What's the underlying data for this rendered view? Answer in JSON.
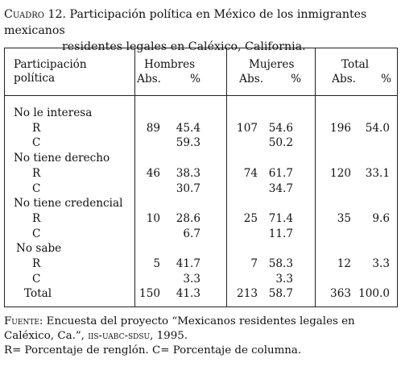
{
  "caption": {
    "label": "Cuadro 12.",
    "line1": "Participación política en México de los inmigrantes mexicanos",
    "line2": "residentes legales en Caléxico, California."
  },
  "table": {
    "row_header_line1": "Participación",
    "row_header_line2": "política",
    "groups": [
      "Hombres",
      "Mujeres",
      "Total"
    ],
    "subheaders": [
      "Abs.",
      "%",
      "Abs.",
      "%",
      "Abs.",
      "%"
    ],
    "rows": [
      {
        "label": "No le interesa",
        "cells": [
          "",
          "",
          "",
          "",
          "",
          ""
        ]
      },
      {
        "label": "R",
        "cells": [
          "89",
          "45.4",
          "107",
          "54.6",
          "196",
          "54.0"
        ]
      },
      {
        "label": "C",
        "cells": [
          "",
          "59.3",
          "",
          "50.2",
          "",
          ""
        ]
      },
      {
        "label": "No tiene derecho",
        "cells": [
          "",
          "",
          "",
          "",
          "",
          ""
        ]
      },
      {
        "label": "R",
        "cells": [
          "46",
          "38.3",
          "74",
          "61.7",
          "120",
          "33.1"
        ]
      },
      {
        "label": "C",
        "cells": [
          "",
          "30.7",
          "",
          "34.7",
          "",
          ""
        ]
      },
      {
        "label": "No tiene credencial",
        "cells": [
          "",
          "",
          "",
          "",
          "",
          ""
        ]
      },
      {
        "label": "R",
        "cells": [
          "10",
          "28.6",
          "25",
          "71.4",
          "35",
          "9.6"
        ]
      },
      {
        "label": "C",
        "cells": [
          "",
          "6.7",
          "",
          "11.7",
          "",
          ""
        ]
      },
      {
        "label": "No sabe",
        "cells": [
          "",
          "",
          "",
          "",
          "",
          ""
        ]
      },
      {
        "label": "R",
        "cells": [
          "5",
          "41.7",
          "7",
          "58.3",
          "12",
          "3.3"
        ]
      },
      {
        "label": "C",
        "cells": [
          "",
          "3.3",
          "",
          "3.3",
          "",
          ""
        ]
      },
      {
        "label": "Total",
        "cells": [
          "150",
          "41.3",
          "213",
          "58.7",
          "363",
          "100.0"
        ]
      }
    ]
  },
  "source": {
    "label": "Fuente:",
    "text1": "Encuesta del proyecto “Mexicanos residentes legales en",
    "text2a": "Caléxico, Ca.”,",
    "text2b": "iis-uabc-sdsu",
    "text2c": ", 1995.",
    "note": "R= Porcentaje de renglón. C= Porcentaje de columna."
  }
}
